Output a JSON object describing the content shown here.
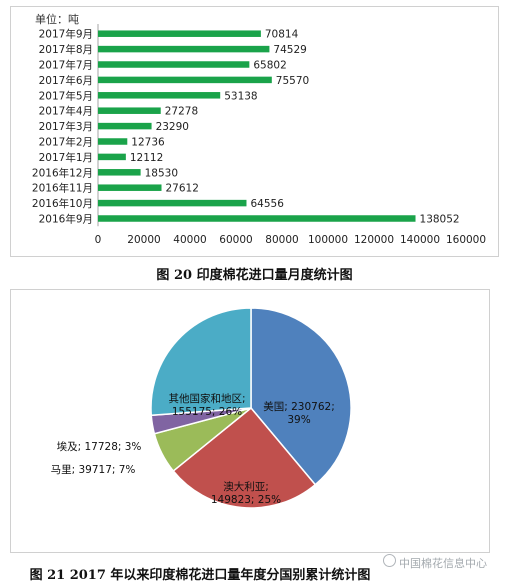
{
  "chart_data": [
    {
      "type": "bar",
      "orientation": "horizontal",
      "unit_label": "单位：吨",
      "categories": [
        "2017年9月",
        "2017年8月",
        "2017年7月",
        "2017年6月",
        "2017年5月",
        "2017年4月",
        "2017年3月",
        "2017年2月",
        "2017年1月",
        "2016年12月",
        "2016年11月",
        "2016年10月",
        "2016年9月"
      ],
      "values": [
        70814,
        74529,
        65802,
        75570,
        53138,
        27278,
        23290,
        12736,
        12112,
        18530,
        27612,
        64556,
        138052
      ],
      "xlim": [
        0,
        160000
      ],
      "xticks": [
        0,
        20000,
        40000,
        60000,
        80000,
        100000,
        120000,
        140000,
        160000
      ],
      "bar_color": "#1aa34a",
      "grid": false
    },
    {
      "type": "pie",
      "slices": [
        {
          "name": "美国",
          "value": 230762,
          "percent": "39%",
          "color": "#4f81bd",
          "label_lines": [
            "美国; 230762;",
            "39%"
          ]
        },
        {
          "name": "澳大利亚",
          "value": 149823,
          "percent": "25%",
          "color": "#c0504d",
          "label_lines": [
            "澳大利亚;",
            "149823; 25%"
          ]
        },
        {
          "name": "马里",
          "value": 39717,
          "percent": "7%",
          "color": "#9bbb59",
          "label_lines": [
            "马里; 39717; 7%"
          ]
        },
        {
          "name": "埃及",
          "value": 17728,
          "percent": "3%",
          "color": "#8064a2",
          "label_lines": [
            "埃及; 17728; 3%"
          ]
        },
        {
          "name": "其他国家和地区",
          "value": 155175,
          "percent": "26%",
          "color": "#4bacc6",
          "label_lines": [
            "其他国家和地区;",
            "155175; 26%"
          ]
        }
      ]
    }
  ],
  "captions": {
    "chart1": "图 20  印度棉花进口量月度统计图",
    "chart2": "图 21 2017 年以来印度棉花进口量年度分国别累计统计图"
  },
  "watermark": "中国棉花信息中心"
}
